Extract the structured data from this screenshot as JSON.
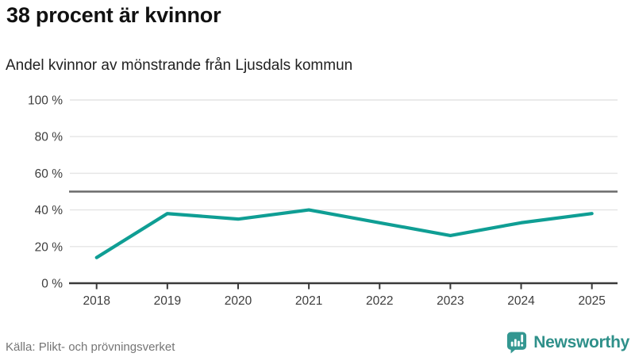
{
  "header": {
    "title": "38 procent är kvinnor",
    "subtitle": "Andel kvinnor av mönstrande från Ljusdals kommun"
  },
  "chart_data": {
    "type": "line",
    "title": "38 procent är kvinnor",
    "subtitle": "Andel kvinnor av mönstrande från Ljusdals kommun",
    "categories": [
      "2018",
      "2019",
      "2020",
      "2021",
      "2022",
      "2023",
      "2024",
      "2025"
    ],
    "series": [
      {
        "name": "Andel kvinnor av mönstrande",
        "values": [
          14,
          38,
          35,
          40,
          33,
          26,
          33,
          38
        ]
      }
    ],
    "unit": "%",
    "xlabel": "",
    "ylabel": "",
    "ylim": [
      0,
      100
    ],
    "yticks": [
      0,
      20,
      40,
      60,
      80,
      100
    ],
    "ytick_labels": [
      "0 %",
      "20 %",
      "40 %",
      "60 %",
      "80 %",
      "100 %"
    ],
    "reference_line": {
      "value": 50
    },
    "grid": true,
    "legend": "none"
  },
  "footer": {
    "source": "Källa: Plikt- och prövningsverket",
    "brand_name": "Newsworthy"
  },
  "colors": {
    "line": "#0f9e94",
    "grid": "#e4e4e4",
    "axis": "#3a3a3a",
    "reference": "#6b6b6b",
    "tick_text": "#3d3d3d",
    "brand": "#2f908a",
    "brand_icon": "#339791"
  },
  "icons": {
    "brand_logo": "newsworthy-speech-bubble-bar-chart-icon"
  }
}
